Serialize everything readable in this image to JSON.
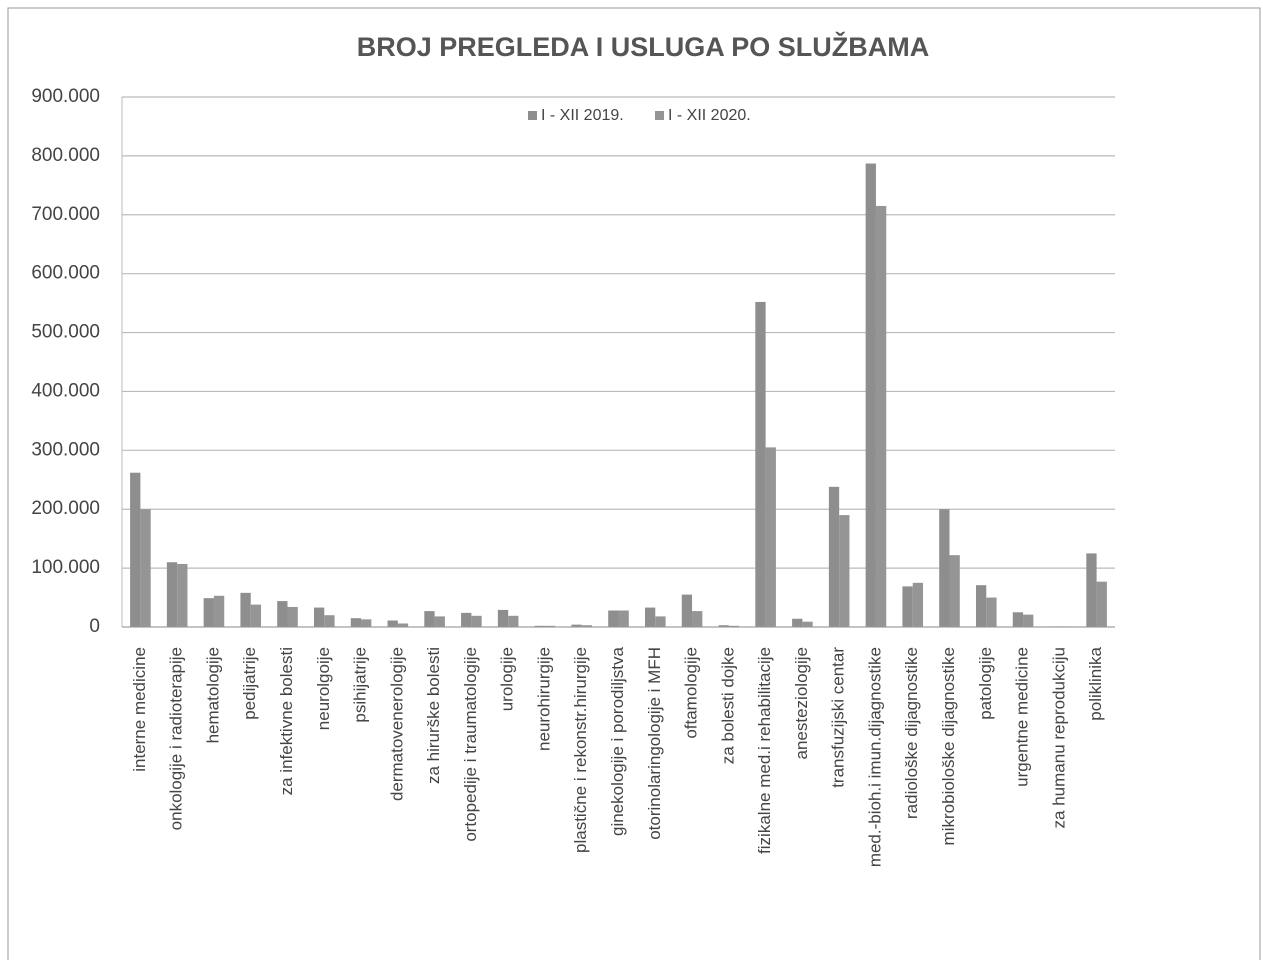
{
  "chart_data": {
    "type": "bar",
    "title": "BROJ PREGLEDA I USLUGA PO SLUŽBAMA",
    "categories": [
      "interne medicine",
      "onkologije i radioterapije",
      "hematologije",
      "pedijatrije",
      "za infektivne bolesti",
      "neurolgoije",
      "psihijatrije",
      "dermatovenerologije",
      "za hirurške bolesti",
      "ortopedije i traumatologije",
      "urologije",
      "neurohirurgije",
      "plastične i rekonstr.hirurgije",
      "ginekologije i porodiljstva",
      "otorinolaringologije i MFH",
      "oftamologije",
      "za bolesti dojke",
      "fizikalne med.i rehabilitacije",
      "anesteziologije",
      "transfuzijski centar",
      "med.-bioh.i imun.dijagnostike",
      "radiološke dijagnostike",
      "mikrobiološke dijagnostike",
      "patologije",
      "urgentne medicine",
      "za humanu reprodukciju",
      "poliklinika"
    ],
    "series": [
      {
        "name": "I - XII 2019.",
        "color": "#8e8e8e",
        "values": [
          262000,
          110000,
          49000,
          58000,
          44000,
          33000,
          15000,
          11000,
          27000,
          24000,
          29000,
          2000,
          4000,
          28000,
          33000,
          55000,
          3000,
          552000,
          14000,
          238000,
          787000,
          69000,
          200000,
          71000,
          25000,
          1000,
          125000
        ]
      },
      {
        "name": "I - XII 2020.",
        "color": "#959595",
        "values": [
          200000,
          107000,
          53000,
          38000,
          34000,
          20000,
          13000,
          6000,
          18000,
          19000,
          19000,
          2000,
          3000,
          28000,
          18000,
          27000,
          2000,
          305000,
          9000,
          190000,
          715000,
          75000,
          122000,
          50000,
          21000,
          1000,
          77000
        ]
      }
    ],
    "ylim": [
      0,
      900000
    ],
    "yticks": [
      0,
      {
        "value": 100000,
        "label": "100.000"
      },
      {
        "value": 200000,
        "label": "200.000"
      },
      {
        "value": 300000,
        "label": "300.000"
      },
      {
        "value": 400000,
        "label": "400.000"
      },
      {
        "value": 500000,
        "label": "500.000"
      },
      {
        "value": 600000,
        "label": "600.000"
      },
      {
        "value": 700000,
        "label": "700.000"
      },
      {
        "value": 800000,
        "label": "800.000"
      },
      {
        "value": 900000,
        "label": "900.000"
      }
    ],
    "grid": true,
    "legend": "top"
  }
}
